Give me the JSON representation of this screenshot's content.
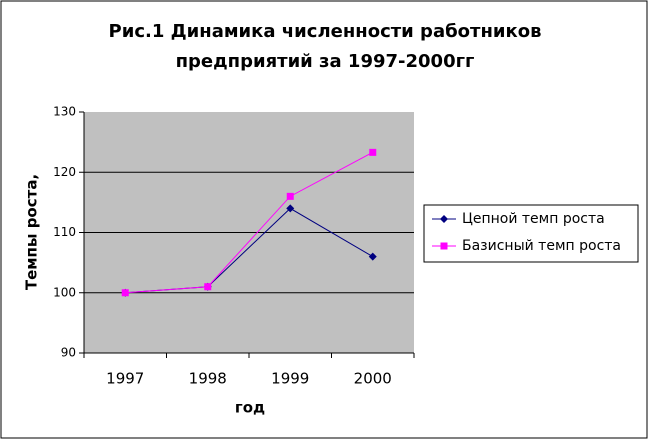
{
  "chart_data": {
    "type": "line",
    "title": [
      "Рис.1 Динамика численности работников",
      "предприятий за 1997-2000гг"
    ],
    "x_label": "год",
    "y_label": "Темпы роста,",
    "categories": [
      "1997",
      "1998",
      "1999",
      "2000"
    ],
    "series": [
      {
        "name": "Цепной темп роста",
        "color": "#000080",
        "marker": "diamond",
        "values": [
          100,
          101,
          114,
          106
        ]
      },
      {
        "name": "Базисный темп роста",
        "color": "#ff00ff",
        "marker": "square",
        "values": [
          100,
          101,
          116,
          123.3
        ]
      }
    ],
    "ylim": [
      90,
      130
    ],
    "yticks": [
      90,
      100,
      110,
      120,
      130
    ],
    "grid": true,
    "legend": "right"
  }
}
